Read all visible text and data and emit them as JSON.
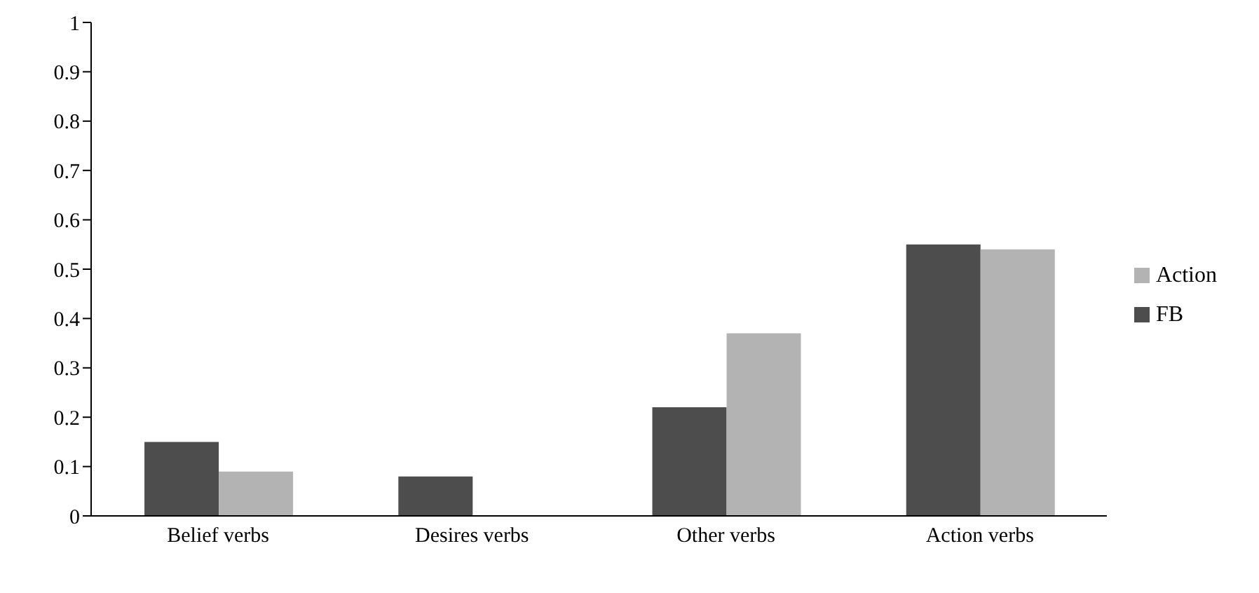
{
  "chart_data": {
    "type": "bar",
    "categories": [
      "Belief verbs",
      "Desires verbs",
      "Other verbs",
      "Action verbs"
    ],
    "series": [
      {
        "name": "FB",
        "color": "#4d4d4d",
        "values": [
          0.15,
          0.08,
          0.22,
          0.55
        ]
      },
      {
        "name": "Action",
        "color": "#b3b3b3",
        "values": [
          0.09,
          0,
          0.37,
          0.54
        ]
      }
    ],
    "ylim": [
      0,
      1
    ],
    "yticks": [
      0,
      0.1,
      0.2,
      0.3,
      0.4,
      0.5,
      0.6,
      0.7,
      0.8,
      0.9,
      1
    ],
    "grid": false,
    "legend": "right"
  }
}
